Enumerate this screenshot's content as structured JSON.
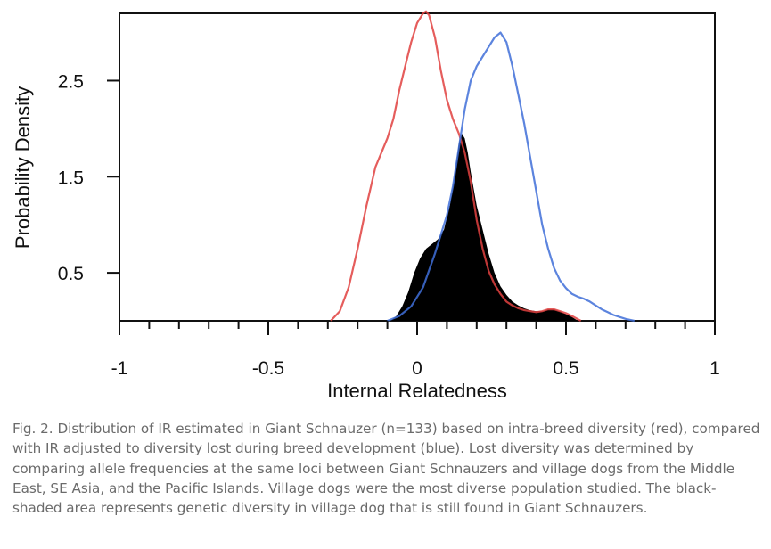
{
  "chart_data": {
    "type": "line",
    "xlabel": "Internal Relatedness",
    "ylabel": "Probability Density",
    "xlim": [
      -1,
      1
    ],
    "ylim": [
      0,
      3.2
    ],
    "xticks": [
      -1,
      -0.5,
      0,
      0.5,
      1
    ],
    "xtick_labels": [
      "-1",
      "-0.5",
      "0",
      "0.5",
      "1"
    ],
    "yticks": [
      0.5,
      1.5,
      2.5
    ],
    "ytick_labels": [
      "0.5",
      "1.5",
      "2.5"
    ],
    "grid": false,
    "series": [
      {
        "color": "#e0413f",
        "x": [
          -0.29,
          -0.26,
          -0.23,
          -0.2,
          -0.17,
          -0.14,
          -0.12,
          -0.1,
          -0.08,
          -0.06,
          -0.04,
          -0.02,
          0.0,
          0.02,
          0.03,
          0.04,
          0.06,
          0.08,
          0.1,
          0.12,
          0.14,
          0.16,
          0.18,
          0.2,
          0.22,
          0.24,
          0.26,
          0.28,
          0.3,
          0.32,
          0.34,
          0.36,
          0.38,
          0.4,
          0.42,
          0.44,
          0.46,
          0.48,
          0.5,
          0.52,
          0.55
        ],
        "y": [
          0.0,
          0.1,
          0.35,
          0.75,
          1.2,
          1.6,
          1.75,
          1.9,
          2.1,
          2.4,
          2.65,
          2.9,
          3.1,
          3.2,
          3.22,
          3.18,
          2.95,
          2.6,
          2.3,
          2.1,
          1.95,
          1.75,
          1.45,
          1.05,
          0.75,
          0.52,
          0.38,
          0.28,
          0.2,
          0.16,
          0.13,
          0.11,
          0.1,
          0.09,
          0.1,
          0.12,
          0.12,
          0.1,
          0.08,
          0.05,
          0.0
        ]
      },
      {
        "color": "#3f6fd8",
        "x": [
          -0.1,
          -0.06,
          -0.02,
          0.02,
          0.06,
          0.08,
          0.1,
          0.12,
          0.14,
          0.16,
          0.18,
          0.2,
          0.22,
          0.24,
          0.26,
          0.28,
          0.3,
          0.32,
          0.34,
          0.36,
          0.38,
          0.4,
          0.42,
          0.44,
          0.46,
          0.48,
          0.5,
          0.52,
          0.54,
          0.56,
          0.58,
          0.6,
          0.62,
          0.64,
          0.66,
          0.68,
          0.7,
          0.73
        ],
        "y": [
          0.0,
          0.05,
          0.15,
          0.35,
          0.7,
          0.9,
          1.1,
          1.4,
          1.8,
          2.2,
          2.5,
          2.65,
          2.75,
          2.85,
          2.95,
          3.0,
          2.9,
          2.65,
          2.35,
          2.05,
          1.7,
          1.35,
          1.0,
          0.75,
          0.55,
          0.42,
          0.34,
          0.28,
          0.25,
          0.23,
          0.2,
          0.16,
          0.12,
          0.09,
          0.06,
          0.04,
          0.02,
          0.0
        ]
      }
    ],
    "shaded_area": {
      "color": "#000000",
      "x": [
        -0.09,
        -0.07,
        -0.05,
        -0.03,
        -0.01,
        0.01,
        0.03,
        0.05,
        0.07,
        0.09,
        0.11,
        0.13,
        0.14,
        0.15,
        0.16,
        0.17,
        0.18,
        0.2,
        0.22,
        0.24,
        0.26,
        0.28,
        0.3,
        0.32,
        0.34,
        0.36,
        0.38,
        0.4,
        0.42,
        0.44,
        0.46,
        0.48,
        0.5,
        0.52,
        0.54
      ],
      "y": [
        0.0,
        0.05,
        0.15,
        0.3,
        0.5,
        0.65,
        0.75,
        0.8,
        0.85,
        0.95,
        1.2,
        1.6,
        1.85,
        1.95,
        1.9,
        1.75,
        1.55,
        1.2,
        0.95,
        0.7,
        0.5,
        0.36,
        0.27,
        0.2,
        0.16,
        0.13,
        0.11,
        0.1,
        0.1,
        0.12,
        0.12,
        0.1,
        0.07,
        0.04,
        0.0
      ]
    }
  },
  "caption": "Fig. 2. Distribution of IR estimated in Giant Schnauzer (n=133) based on intra-breed diversity (red), compared with IR adjusted to diversity lost during breed development (blue). Lost diversity was determined by comparing allele frequencies at the same loci between Giant Schnauzers and village dogs from the Middle East, SE Asia, and the Pacific Islands. Village dogs were the most diverse population studied. The black-shaded area represents genetic diversity in village dog that is still found in Giant Schnauzers."
}
